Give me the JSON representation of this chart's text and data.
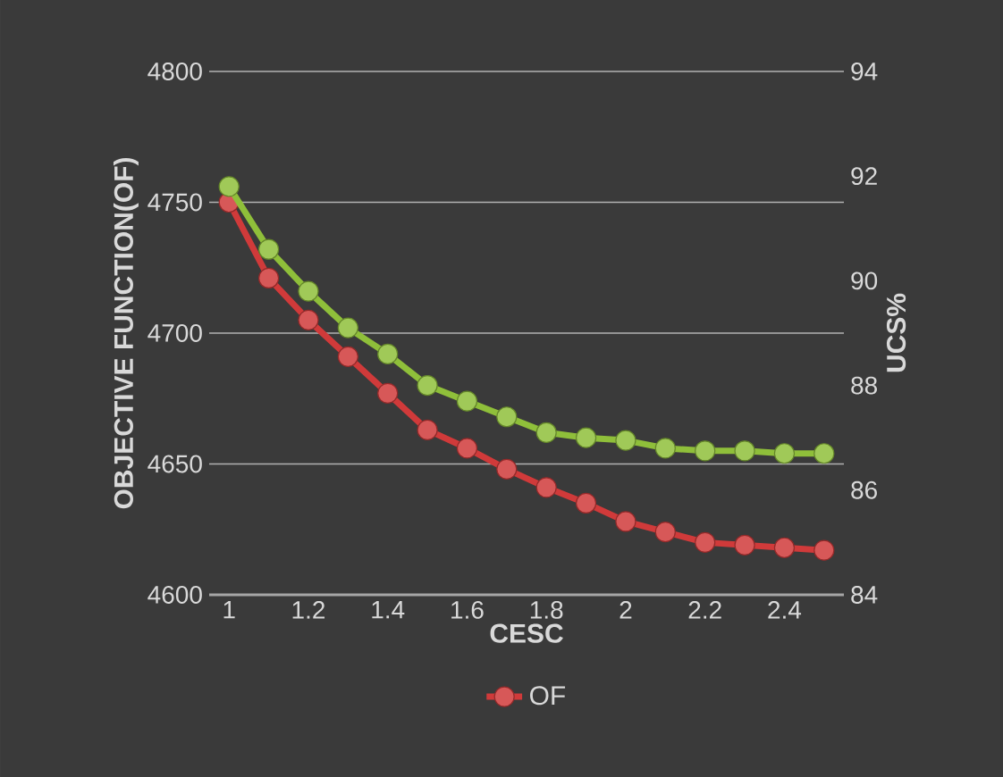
{
  "chart_data": {
    "type": "line",
    "xlabel": "CESC",
    "ylabel": "OBJECTIVE FUNCTION(OF)",
    "y2label": "UCS%",
    "x": [
      1,
      1.1,
      1.2,
      1.3,
      1.4,
      1.5,
      1.6,
      1.7,
      1.8,
      1.9,
      2.0,
      2.1,
      2.2,
      2.3,
      2.4,
      2.5
    ],
    "series": [
      {
        "name": "OF",
        "color": "#d03a3a",
        "values": [
          4750,
          4721,
          4705,
          4691,
          4677,
          4663,
          4656,
          4648,
          4641,
          4635,
          4628,
          4624,
          4620,
          4619,
          4618,
          4617
        ]
      },
      {
        "color": "#8fbf3a",
        "axis": "y2",
        "values": [
          91.8,
          90.6,
          89.8,
          89.1,
          88.6,
          88.0,
          87.7,
          87.4,
          87.1,
          87.0,
          86.95,
          86.8,
          86.75,
          86.75,
          86.7,
          86.7
        ]
      }
    ],
    "xlim": [
      0.95,
      2.55
    ],
    "xticks": [
      1,
      1.2,
      1.4,
      1.6,
      1.8,
      2,
      2.2,
      2.4
    ],
    "ylim": [
      4600,
      4800
    ],
    "yticks": [
      4600,
      4650,
      4700,
      4750,
      4800
    ],
    "y2lim": [
      84,
      94
    ],
    "y2ticks": [
      84,
      86,
      88,
      90,
      92,
      94
    ],
    "grid": "y",
    "legend": "bottom",
    "marker": "circle",
    "line_style": "solid"
  }
}
